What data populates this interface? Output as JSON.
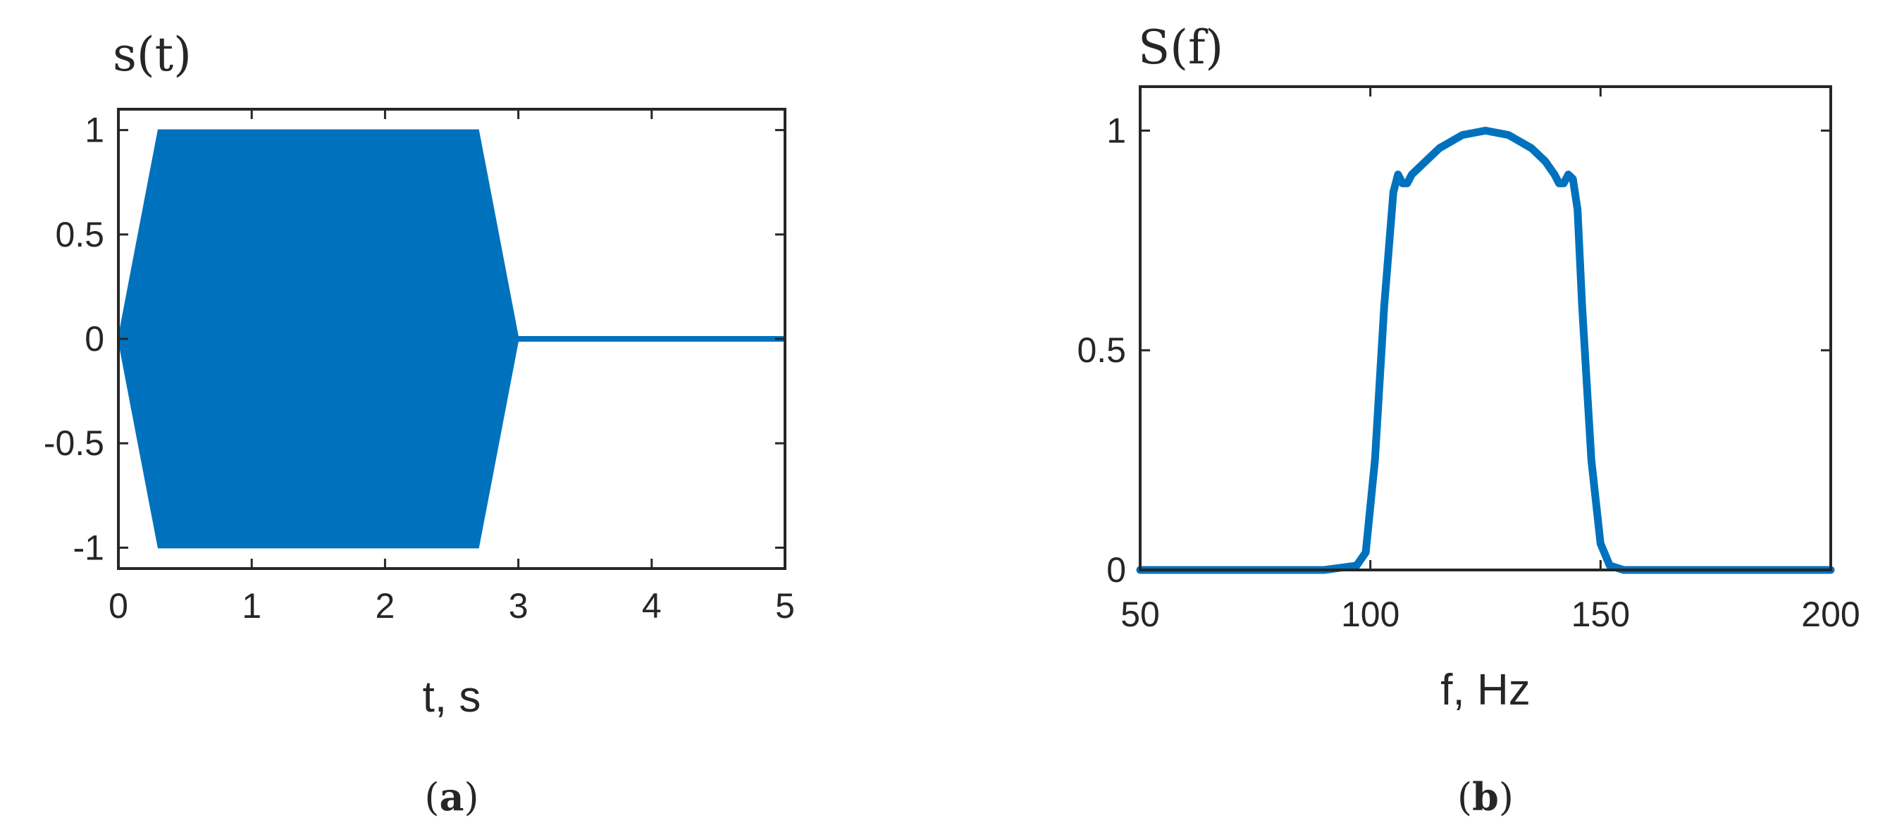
{
  "chart_data": [
    {
      "type": "area",
      "title": "s(t)",
      "xlabel": "t, s",
      "ylabel": "",
      "xlim": [
        0,
        5
      ],
      "ylim": [
        -1.1,
        1.1
      ],
      "xticks": [
        "0",
        "1",
        "2",
        "3",
        "4",
        "5"
      ],
      "yticks": [
        "1",
        "0.5",
        "0",
        "-0.5",
        "-1"
      ],
      "color": "#0072BD",
      "envelope": {
        "t": [
          0,
          0.3,
          2.7,
          3.0,
          5.0
        ],
        "amplitude": [
          0,
          1,
          1,
          0,
          0
        ]
      },
      "caption": "(a)"
    },
    {
      "type": "line",
      "title": "S(f)",
      "xlabel": "f, Hz",
      "ylabel": "",
      "xlim": [
        50,
        200
      ],
      "ylim": [
        0,
        1.1
      ],
      "xticks": [
        "50",
        "100",
        "150",
        "200"
      ],
      "yticks": [
        "1",
        "0.5",
        "0"
      ],
      "color": "#0072BD",
      "series": [
        {
          "x": [
            50,
            90,
            97,
            99,
            101,
            103,
            105,
            106,
            107,
            108,
            109,
            110,
            112,
            115,
            120,
            125,
            130,
            135,
            138,
            140,
            141,
            142,
            143,
            144,
            145,
            146,
            148,
            150,
            152,
            155,
            160,
            200
          ],
          "y": [
            0,
            0,
            0.01,
            0.04,
            0.25,
            0.6,
            0.86,
            0.9,
            0.88,
            0.88,
            0.9,
            0.91,
            0.93,
            0.96,
            0.99,
            1.0,
            0.99,
            0.96,
            0.93,
            0.9,
            0.88,
            0.88,
            0.9,
            0.89,
            0.82,
            0.6,
            0.25,
            0.06,
            0.01,
            0,
            0,
            0
          ]
        }
      ],
      "caption": "(b)"
    }
  ]
}
